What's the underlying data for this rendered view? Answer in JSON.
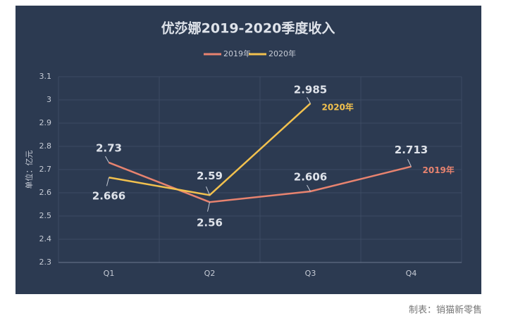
{
  "chart_data": {
    "type": "line",
    "title": "优莎娜2019-2020季度收入",
    "y_label": "单位：亿元",
    "categories": [
      "Q1",
      "Q2",
      "Q3",
      "Q4"
    ],
    "series": [
      {
        "name": "2019年",
        "color": "#e8836f",
        "values": [
          2.73,
          2.56,
          2.606,
          2.713
        ]
      },
      {
        "name": "2020年",
        "color": "#f2c14e",
        "values": [
          2.666,
          2.59,
          2.985,
          null
        ]
      }
    ],
    "ylim": [
      2.3,
      3.1
    ],
    "yticks": [
      2.3,
      2.4,
      2.5,
      2.6,
      2.7,
      2.8,
      2.9,
      3,
      3.1
    ],
    "grid": true,
    "legend": "top",
    "footer": "制表：销猫新零售"
  }
}
